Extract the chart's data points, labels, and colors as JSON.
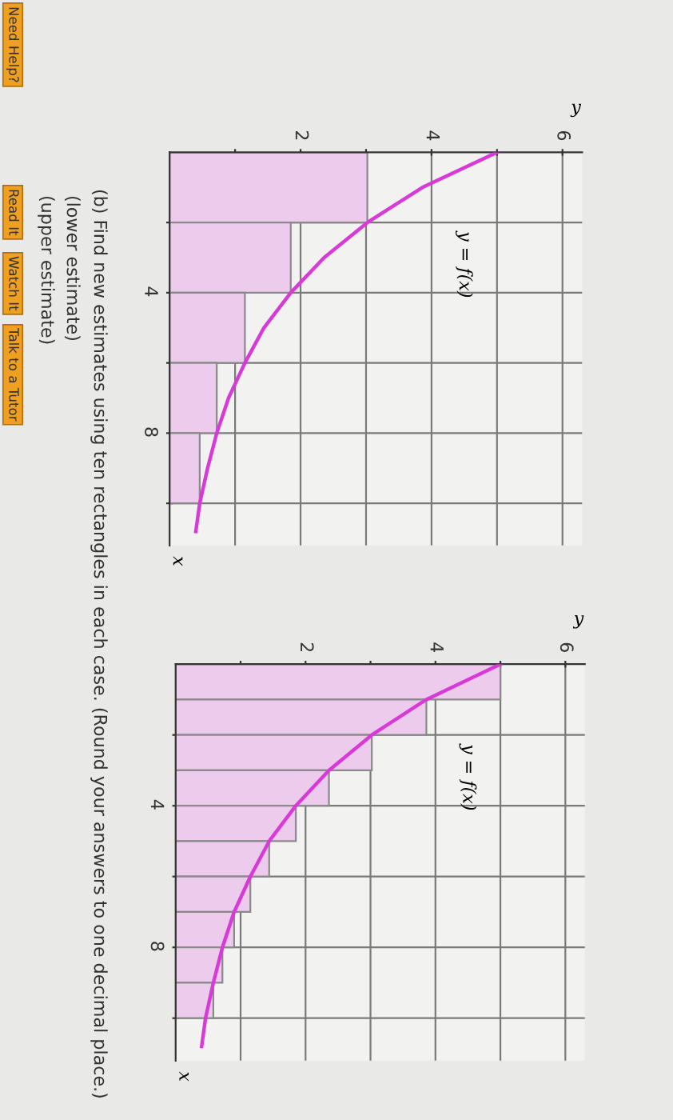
{
  "chart_data": [
    {
      "type": "bar",
      "orientation": "horizontal",
      "xlabel": "y",
      "ylabel": "x",
      "xlim": [
        0,
        6.3
      ],
      "xticks": [
        {
          "value": 1,
          "label": null
        },
        2,
        {
          "value": 3,
          "label": null
        },
        4,
        {
          "value": 5,
          "label": null
        },
        6
      ],
      "ylim": [
        11.2,
        0
      ],
      "yticks": [
        {
          "value": 2,
          "label": null
        },
        4,
        {
          "value": 6,
          "label": null
        },
        8,
        {
          "value": 10,
          "label": null
        }
      ],
      "grid": true,
      "series": [
        {
          "color": "#eccbec",
          "x": [
            1,
            3,
            5,
            7,
            9
          ],
          "values": [
            3.02,
            1.85,
            1.15,
            0.72,
            0.46
          ]
        },
        {
          "type": "line",
          "color": "#d83ad8",
          "x": [
            0,
            1,
            2,
            3,
            4,
            5,
            6,
            7,
            8,
            9,
            10,
            10.8
          ],
          "values": [
            5,
            3.86,
            3.02,
            2.36,
            1.85,
            1.44,
            1.15,
            0.9,
            0.72,
            0.58,
            0.46,
            0.4
          ]
        }
      ],
      "annotations": [
        "y = f(x)",
        "(b) Find new estimates using ten rectangles in each case. (Round your answers to one decimal place.)",
        "(lower estimate)",
        "(upper estimate)",
        "Need Help?",
        "Read It",
        "Watch It",
        "Talk to a Tutor"
      ]
    },
    {
      "type": "bar",
      "orientation": "horizontal",
      "xlabel": "y",
      "ylabel": "x",
      "xlim": [
        0,
        6.3
      ],
      "xticks": [
        {
          "value": 1,
          "label": null
        },
        2,
        {
          "value": 3,
          "label": null
        },
        4,
        {
          "value": 5,
          "label": null
        },
        6
      ],
      "ylim": [
        11.2,
        0
      ],
      "yticks": [
        {
          "value": 2,
          "label": null
        },
        4,
        {
          "value": 6,
          "label": null
        },
        8,
        {
          "value": 10,
          "label": null
        }
      ],
      "grid": true,
      "series": [
        {
          "color": "#eccbec",
          "x": [
            0.5,
            1.5,
            2.5,
            3.5,
            4.5,
            5.5,
            6.5,
            7.5,
            8.5,
            9.5
          ],
          "values": [
            5,
            3.86,
            3.02,
            2.36,
            1.85,
            1.44,
            1.15,
            0.9,
            0.72,
            0.58
          ]
        },
        {
          "type": "line",
          "color": "#d83ad8",
          "x": [
            0,
            1,
            2,
            3,
            4,
            5,
            6,
            7,
            8,
            9,
            10,
            10.8
          ],
          "values": [
            5,
            3.86,
            3.02,
            2.36,
            1.85,
            1.44,
            1.15,
            0.9,
            0.72,
            0.58,
            0.46,
            0.4
          ]
        }
      ],
      "annotations": [
        "y = f(x)"
      ]
    }
  ]
}
